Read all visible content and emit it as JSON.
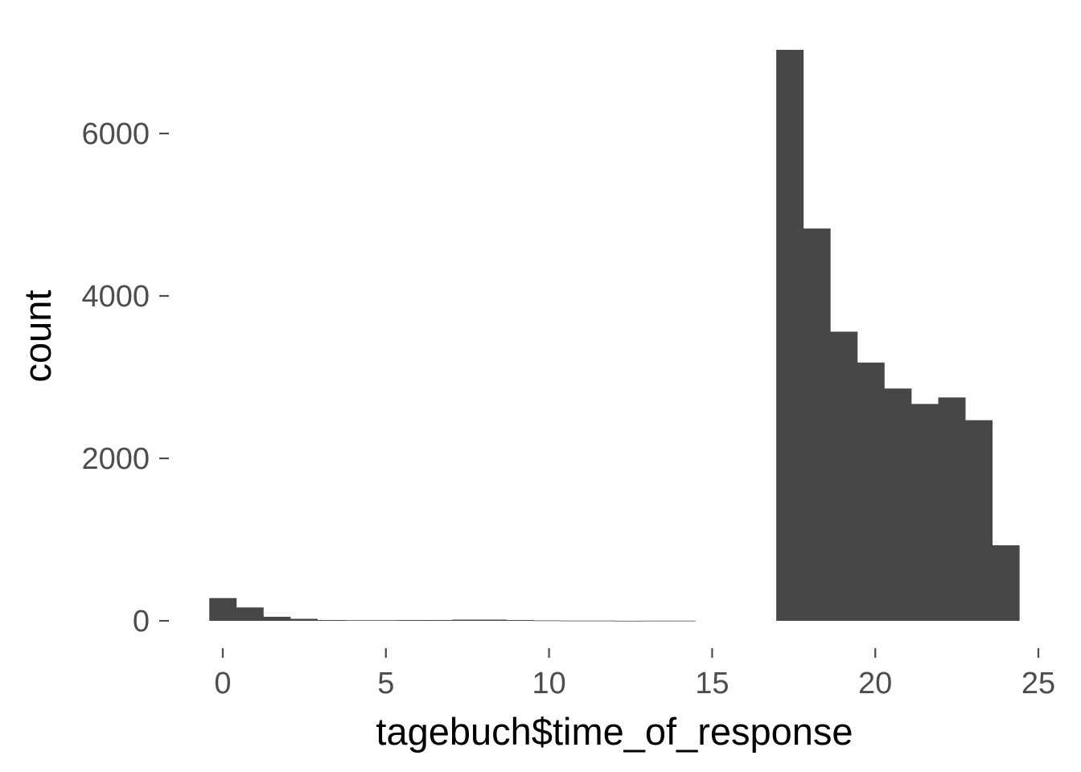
{
  "chart_data": {
    "type": "bar",
    "title": "",
    "xlabel": "tagebuch$time_of_response",
    "ylabel": "count",
    "x_ticks": [
      0,
      5,
      10,
      15,
      20,
      25
    ],
    "y_ticks": [
      0,
      2000,
      4000,
      6000
    ],
    "x_range": [
      -0.8,
      25
    ],
    "y_range": [
      0,
      7050
    ],
    "grid": false,
    "legend": "none",
    "bin_width": 0.828,
    "bins": [
      {
        "x": 0.0,
        "count": 280
      },
      {
        "x": 0.828,
        "count": 165
      },
      {
        "x": 1.655,
        "count": 50
      },
      {
        "x": 2.483,
        "count": 25
      },
      {
        "x": 3.31,
        "count": 10
      },
      {
        "x": 4.138,
        "count": 8
      },
      {
        "x": 4.966,
        "count": 8
      },
      {
        "x": 5.793,
        "count": 10
      },
      {
        "x": 6.621,
        "count": 10
      },
      {
        "x": 7.448,
        "count": 15
      },
      {
        "x": 8.276,
        "count": 15
      },
      {
        "x": 9.103,
        "count": 10
      },
      {
        "x": 9.931,
        "count": 5
      },
      {
        "x": 10.759,
        "count": 3
      },
      {
        "x": 11.586,
        "count": 3
      },
      {
        "x": 12.414,
        "count": 1
      },
      {
        "x": 13.241,
        "count": 2
      },
      {
        "x": 14.069,
        "count": 2
      },
      {
        "x": 14.897,
        "count": 0
      },
      {
        "x": 15.724,
        "count": 0
      },
      {
        "x": 16.552,
        "count": 0
      },
      {
        "x": 17.379,
        "count": 7030
      },
      {
        "x": 18.207,
        "count": 4830
      },
      {
        "x": 19.035,
        "count": 3560
      },
      {
        "x": 19.862,
        "count": 3180
      },
      {
        "x": 20.69,
        "count": 2860
      },
      {
        "x": 21.517,
        "count": 2670
      },
      {
        "x": 22.345,
        "count": 2750
      },
      {
        "x": 23.172,
        "count": 2470
      },
      {
        "x": 24.0,
        "count": 930
      }
    ],
    "colors": {
      "bar": "#474747",
      "tick": "#4d4d4d",
      "tick_label": "#4d4d4d",
      "axis_title": "#000000",
      "background": "#ffffff"
    }
  }
}
